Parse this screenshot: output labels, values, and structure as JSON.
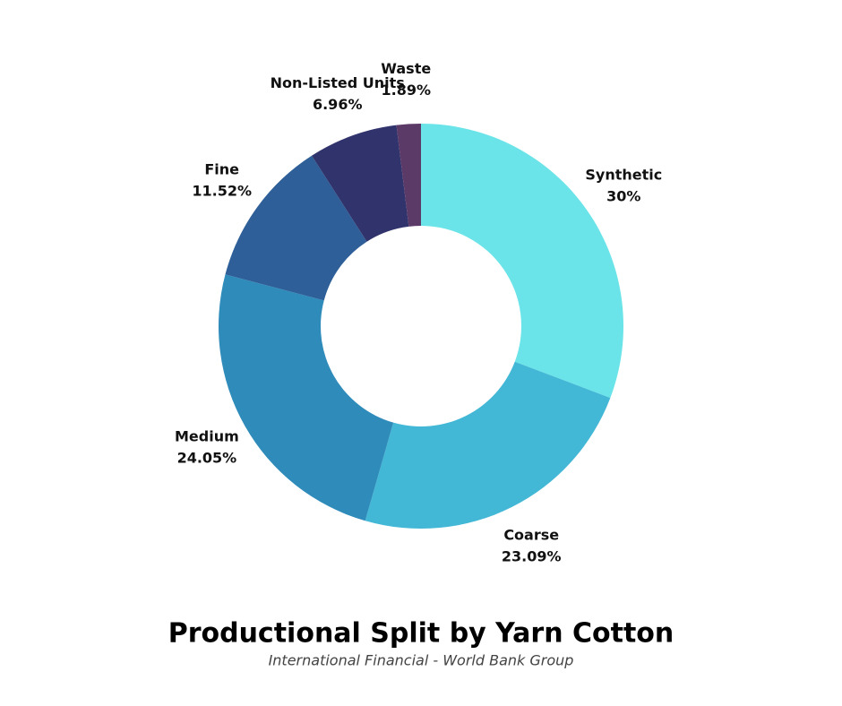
{
  "chart_data": {
    "type": "donut",
    "title": "Productional Split by Yarn Cotton",
    "subtitle": "International Financial - World Bank Group",
    "categories": [
      "Synthetic",
      "Coarse",
      "Medium",
      "Fine",
      "Non-Listed Units",
      "Waste"
    ],
    "values": [
      30,
      23.09,
      24.05,
      11.52,
      6.96,
      1.89
    ],
    "value_labels": [
      "30%",
      "23.09%",
      "24.05%",
      "11.52%",
      "6.96%",
      "1.89%"
    ],
    "colors": [
      "#6ae4e8",
      "#42b7d6",
      "#2e8bba",
      "#2e5f98",
      "#31346c",
      "#5c3a68"
    ]
  }
}
